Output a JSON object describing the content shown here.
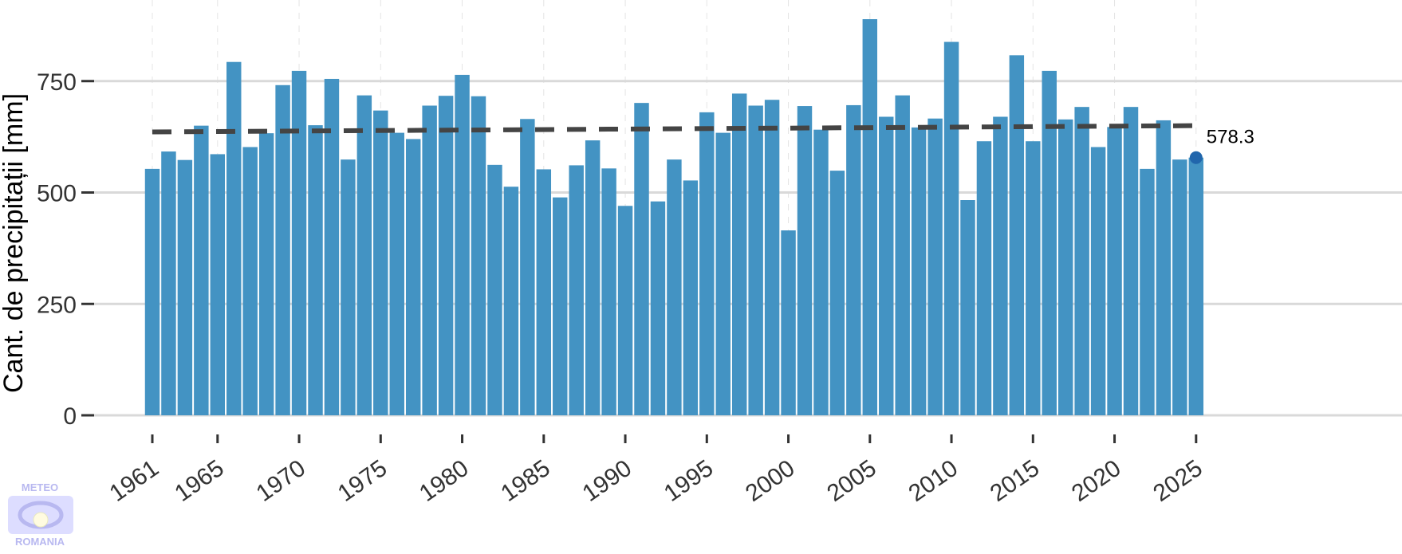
{
  "chart_data": {
    "type": "bar",
    "title": "",
    "xlabel": "",
    "ylabel": "Cant. de precipitații [mm]",
    "ylim": [
      0,
      900
    ],
    "y_ticks": [
      0,
      250,
      500,
      750
    ],
    "x_tick_labels": [
      "1961",
      "1965",
      "1970",
      "1975",
      "1980",
      "1985",
      "1990",
      "1995",
      "2000",
      "2005",
      "2010",
      "2015",
      "2020",
      "2025"
    ],
    "grid": {
      "horizontal": true,
      "vertical_dashed": true
    },
    "categories": [
      1961,
      1962,
      1963,
      1964,
      1965,
      1966,
      1967,
      1968,
      1969,
      1970,
      1971,
      1972,
      1973,
      1974,
      1975,
      1976,
      1977,
      1978,
      1979,
      1980,
      1981,
      1982,
      1983,
      1984,
      1985,
      1986,
      1987,
      1988,
      1989,
      1990,
      1991,
      1992,
      1993,
      1994,
      1995,
      1996,
      1997,
      1998,
      1999,
      2000,
      2001,
      2002,
      2003,
      2004,
      2005,
      2006,
      2007,
      2008,
      2009,
      2010,
      2011,
      2012,
      2013,
      2014,
      2015,
      2016,
      2017,
      2018,
      2019,
      2020,
      2021,
      2022,
      2023,
      2024,
      2025
    ],
    "values": [
      553,
      592,
      573,
      650,
      586,
      793,
      602,
      633,
      741,
      773,
      651,
      755,
      574,
      718,
      684,
      634,
      620,
      695,
      717,
      764,
      716,
      562,
      513,
      665,
      552,
      489,
      561,
      617,
      554,
      470,
      701,
      480,
      574,
      527,
      680,
      634,
      722,
      695,
      708,
      415,
      694,
      641,
      549,
      696,
      889,
      670,
      718,
      646,
      666,
      838,
      483,
      615,
      670,
      808,
      615,
      773,
      664,
      692,
      602,
      647,
      692,
      553,
      662,
      574,
      578.3
    ],
    "series_color": "#4393c3",
    "trend": {
      "style": "dashed",
      "color": "#444444",
      "x": [
        1961,
        2025
      ],
      "y": [
        636,
        650
      ]
    },
    "annotation": {
      "x": 2025,
      "y": 578.3,
      "label": "578.3",
      "marker_color": "#2166ac"
    }
  },
  "logo": {
    "top_text": "METEO",
    "bottom_text": "ROMANIA"
  }
}
